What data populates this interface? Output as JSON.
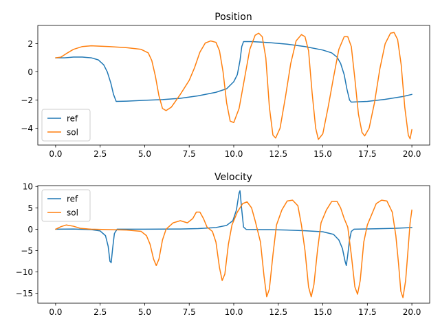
{
  "chart_data": [
    {
      "type": "line",
      "title": "Position",
      "xlabel": "",
      "ylabel": "",
      "xlim": [
        -1.0,
        21.0
      ],
      "ylim": [
        -5.2,
        3.3
      ],
      "xticks": [
        0.0,
        2.5,
        5.0,
        7.5,
        10.0,
        12.5,
        15.0,
        17.5,
        20.0
      ],
      "xtick_labels": [
        "0.0",
        "2.5",
        "5.0",
        "7.5",
        "10.0",
        "12.5",
        "15.0",
        "17.5",
        "20.0"
      ],
      "yticks": [
        2,
        0,
        -2,
        -4
      ],
      "ytick_labels": [
        "2",
        "0",
        "−2",
        "−4"
      ],
      "grid": false,
      "legend": "lower-left",
      "series": [
        {
          "name": "ref",
          "color": "#1f77b4",
          "points": [
            [
              0.0,
              1.0
            ],
            [
              0.5,
              1.0
            ],
            [
              1.0,
              1.05
            ],
            [
              1.5,
              1.05
            ],
            [
              2.0,
              1.0
            ],
            [
              2.4,
              0.85
            ],
            [
              2.7,
              0.5
            ],
            [
              2.9,
              0.0
            ],
            [
              3.1,
              -0.8
            ],
            [
              3.25,
              -1.6
            ],
            [
              3.4,
              -2.1
            ],
            [
              4.0,
              -2.08
            ],
            [
              5.0,
              -2.02
            ],
            [
              6.0,
              -1.97
            ],
            [
              7.0,
              -1.88
            ],
            [
              8.0,
              -1.7
            ],
            [
              9.0,
              -1.45
            ],
            [
              9.6,
              -1.2
            ],
            [
              10.0,
              -0.7
            ],
            [
              10.2,
              -0.2
            ],
            [
              10.35,
              0.8
            ],
            [
              10.45,
              1.8
            ],
            [
              10.55,
              2.15
            ],
            [
              11.0,
              2.15
            ],
            [
              12.0,
              2.08
            ],
            [
              13.0,
              1.97
            ],
            [
              14.0,
              1.8
            ],
            [
              15.0,
              1.55
            ],
            [
              15.5,
              1.35
            ],
            [
              15.8,
              1.05
            ],
            [
              16.0,
              0.6
            ],
            [
              16.2,
              -0.2
            ],
            [
              16.35,
              -1.2
            ],
            [
              16.5,
              -2.0
            ],
            [
              16.6,
              -2.15
            ],
            [
              17.5,
              -2.1
            ],
            [
              18.5,
              -1.95
            ],
            [
              19.5,
              -1.75
            ],
            [
              20.0,
              -1.6
            ]
          ]
        },
        {
          "name": "sol",
          "color": "#ff7f0e",
          "points": [
            [
              0.0,
              1.0
            ],
            [
              0.3,
              1.05
            ],
            [
              0.6,
              1.3
            ],
            [
              1.0,
              1.6
            ],
            [
              1.5,
              1.8
            ],
            [
              2.0,
              1.85
            ],
            [
              3.0,
              1.8
            ],
            [
              4.0,
              1.72
            ],
            [
              4.8,
              1.6
            ],
            [
              5.2,
              1.35
            ],
            [
              5.4,
              0.8
            ],
            [
              5.6,
              -0.3
            ],
            [
              5.8,
              -1.7
            ],
            [
              6.0,
              -2.6
            ],
            [
              6.2,
              -2.75
            ],
            [
              6.5,
              -2.5
            ],
            [
              7.0,
              -1.6
            ],
            [
              7.5,
              -0.6
            ],
            [
              7.8,
              0.3
            ],
            [
              8.1,
              1.4
            ],
            [
              8.4,
              2.05
            ],
            [
              8.7,
              2.2
            ],
            [
              9.0,
              2.1
            ],
            [
              9.2,
              1.5
            ],
            [
              9.4,
              0.0
            ],
            [
              9.6,
              -2.2
            ],
            [
              9.8,
              -3.5
            ],
            [
              10.0,
              -3.6
            ],
            [
              10.3,
              -2.6
            ],
            [
              10.6,
              -0.5
            ],
            [
              10.9,
              1.6
            ],
            [
              11.2,
              2.6
            ],
            [
              11.4,
              2.75
            ],
            [
              11.6,
              2.5
            ],
            [
              11.8,
              1.0
            ],
            [
              12.0,
              -2.5
            ],
            [
              12.2,
              -4.5
            ],
            [
              12.35,
              -4.7
            ],
            [
              12.6,
              -4.0
            ],
            [
              12.9,
              -1.8
            ],
            [
              13.2,
              0.6
            ],
            [
              13.5,
              2.2
            ],
            [
              13.8,
              2.65
            ],
            [
              14.0,
              2.5
            ],
            [
              14.2,
              1.5
            ],
            [
              14.4,
              -1.5
            ],
            [
              14.6,
              -4.0
            ],
            [
              14.75,
              -4.8
            ],
            [
              15.0,
              -4.4
            ],
            [
              15.3,
              -2.5
            ],
            [
              15.6,
              -0.4
            ],
            [
              15.9,
              1.6
            ],
            [
              16.2,
              2.5
            ],
            [
              16.4,
              2.5
            ],
            [
              16.6,
              1.8
            ],
            [
              16.8,
              -0.5
            ],
            [
              17.0,
              -3.0
            ],
            [
              17.2,
              -4.3
            ],
            [
              17.35,
              -4.55
            ],
            [
              17.6,
              -4.0
            ],
            [
              17.9,
              -2.2
            ],
            [
              18.2,
              0.2
            ],
            [
              18.5,
              2.0
            ],
            [
              18.8,
              2.75
            ],
            [
              19.0,
              2.8
            ],
            [
              19.2,
              2.3
            ],
            [
              19.4,
              0.5
            ],
            [
              19.6,
              -2.5
            ],
            [
              19.8,
              -4.5
            ],
            [
              19.9,
              -4.75
            ],
            [
              20.0,
              -4.1
            ]
          ]
        }
      ]
    },
    {
      "type": "line",
      "title": "Velocity",
      "xlabel": "",
      "ylabel": "",
      "xlim": [
        -1.0,
        21.0
      ],
      "ylim": [
        -17.3,
        10.2
      ],
      "xticks": [
        0.0,
        2.5,
        5.0,
        7.5,
        10.0,
        12.5,
        15.0,
        17.5,
        20.0
      ],
      "xtick_labels": [
        "0.0",
        "2.5",
        "5.0",
        "7.5",
        "10.0",
        "12.5",
        "15.0",
        "17.5",
        "20.0"
      ],
      "yticks": [
        10,
        5,
        0,
        -5,
        -10,
        -15
      ],
      "ytick_labels": [
        "10",
        "5",
        "0",
        "−5",
        "−10",
        "−15"
      ],
      "grid": false,
      "legend": "upper-left",
      "series": [
        {
          "name": "ref",
          "color": "#1f77b4",
          "points": [
            [
              0.0,
              0.0
            ],
            [
              1.0,
              0.05
            ],
            [
              2.0,
              -0.1
            ],
            [
              2.5,
              -0.4
            ],
            [
              2.8,
              -1.5
            ],
            [
              2.95,
              -4.0
            ],
            [
              3.05,
              -7.5
            ],
            [
              3.12,
              -7.8
            ],
            [
              3.2,
              -4.5
            ],
            [
              3.3,
              -1.0
            ],
            [
              3.45,
              0.0
            ],
            [
              5.0,
              0.0
            ],
            [
              7.0,
              0.05
            ],
            [
              8.0,
              0.15
            ],
            [
              9.0,
              0.4
            ],
            [
              9.6,
              0.9
            ],
            [
              9.95,
              2.0
            ],
            [
              10.15,
              4.5
            ],
            [
              10.3,
              8.5
            ],
            [
              10.35,
              9.0
            ],
            [
              10.45,
              4.5
            ],
            [
              10.55,
              0.5
            ],
            [
              10.7,
              -0.05
            ],
            [
              12.0,
              -0.1
            ],
            [
              13.0,
              -0.2
            ],
            [
              14.0,
              -0.35
            ],
            [
              15.0,
              -0.6
            ],
            [
              15.6,
              -1.2
            ],
            [
              15.9,
              -2.5
            ],
            [
              16.1,
              -4.5
            ],
            [
              16.25,
              -7.5
            ],
            [
              16.32,
              -8.5
            ],
            [
              16.4,
              -6.0
            ],
            [
              16.5,
              -2.5
            ],
            [
              16.6,
              -0.5
            ],
            [
              16.75,
              0.0
            ],
            [
              18.0,
              0.1
            ],
            [
              19.0,
              0.2
            ],
            [
              20.0,
              0.4
            ]
          ]
        },
        {
          "name": "sol",
          "color": "#ff7f0e",
          "points": [
            [
              0.0,
              0.0
            ],
            [
              0.3,
              0.6
            ],
            [
              0.6,
              1.0
            ],
            [
              1.0,
              0.7
            ],
            [
              1.4,
              0.2
            ],
            [
              2.0,
              0.0
            ],
            [
              3.0,
              -0.1
            ],
            [
              4.0,
              -0.2
            ],
            [
              4.8,
              -0.5
            ],
            [
              5.1,
              -1.5
            ],
            [
              5.3,
              -3.5
            ],
            [
              5.5,
              -7.0
            ],
            [
              5.65,
              -8.5
            ],
            [
              5.8,
              -7.0
            ],
            [
              6.0,
              -2.5
            ],
            [
              6.2,
              0.0
            ],
            [
              6.6,
              1.5
            ],
            [
              7.0,
              2.0
            ],
            [
              7.4,
              1.5
            ],
            [
              7.7,
              2.5
            ],
            [
              7.9,
              4.0
            ],
            [
              8.1,
              4.0
            ],
            [
              8.3,
              2.5
            ],
            [
              8.5,
              0.5
            ],
            [
              8.8,
              -0.5
            ],
            [
              9.0,
              -3.0
            ],
            [
              9.2,
              -9.0
            ],
            [
              9.35,
              -12.0
            ],
            [
              9.5,
              -10.5
            ],
            [
              9.7,
              -3.5
            ],
            [
              9.9,
              1.0
            ],
            [
              10.2,
              4.0
            ],
            [
              10.5,
              6.0
            ],
            [
              10.75,
              6.4
            ],
            [
              11.0,
              5.0
            ],
            [
              11.2,
              2.0
            ],
            [
              11.5,
              -3.0
            ],
            [
              11.7,
              -11.0
            ],
            [
              11.85,
              -15.8
            ],
            [
              12.0,
              -14.0
            ],
            [
              12.2,
              -6.0
            ],
            [
              12.4,
              1.0
            ],
            [
              12.7,
              4.5
            ],
            [
              13.0,
              6.6
            ],
            [
              13.3,
              6.8
            ],
            [
              13.6,
              5.5
            ],
            [
              13.8,
              1.0
            ],
            [
              14.0,
              -5.0
            ],
            [
              14.2,
              -13.5
            ],
            [
              14.35,
              -15.8
            ],
            [
              14.5,
              -13.0
            ],
            [
              14.7,
              -5.0
            ],
            [
              14.9,
              1.5
            ],
            [
              15.2,
              4.5
            ],
            [
              15.5,
              6.5
            ],
            [
              15.8,
              6.5
            ],
            [
              16.0,
              5.0
            ],
            [
              16.2,
              2.5
            ],
            [
              16.4,
              0.5
            ],
            [
              16.6,
              -6.0
            ],
            [
              16.8,
              -13.5
            ],
            [
              16.95,
              -15.2
            ],
            [
              17.1,
              -12.0
            ],
            [
              17.3,
              -3.0
            ],
            [
              17.5,
              1.0
            ],
            [
              17.8,
              4.0
            ],
            [
              18.0,
              6.0
            ],
            [
              18.3,
              6.8
            ],
            [
              18.6,
              6.6
            ],
            [
              18.9,
              4.0
            ],
            [
              19.1,
              -1.5
            ],
            [
              19.25,
              -8.0
            ],
            [
              19.38,
              -14.5
            ],
            [
              19.5,
              -16.0
            ],
            [
              19.65,
              -12.0
            ],
            [
              19.8,
              -4.0
            ],
            [
              19.9,
              1.5
            ],
            [
              20.0,
              4.5
            ]
          ]
        }
      ]
    }
  ]
}
